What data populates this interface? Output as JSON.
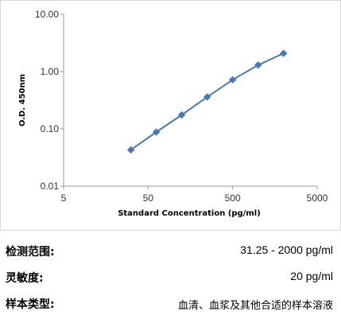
{
  "chart_data": {
    "type": "line",
    "x_scale": "log",
    "y_scale": "log",
    "xlim": [
      5,
      5000
    ],
    "ylim": [
      0.01,
      10
    ],
    "x_ticks": [
      "5",
      "50",
      "500",
      "5000"
    ],
    "y_ticks": [
      "10.00",
      "1.00",
      "0.10",
      "0.01"
    ],
    "xlabel": "Standard Concentration (pg/ml)",
    "ylabel": "O.D.  450nm",
    "grid": false,
    "series": [
      {
        "color": "#4a78b5",
        "marker": "diamond",
        "x": [
          31.25,
          62.5,
          125,
          250,
          500,
          1000,
          2000
        ],
        "y": [
          0.043,
          0.088,
          0.175,
          0.36,
          0.72,
          1.3,
          2.08
        ]
      }
    ]
  },
  "info": {
    "range_label": "检测范围:",
    "range_value": "31.25 - 2000 pg/ml",
    "sensitivity_label": "灵敏度:",
    "sensitivity_value": "20 pg/ml",
    "sample_label": "样本类型:",
    "sample_value": "血清、血浆及其他合适的样本溶液"
  }
}
